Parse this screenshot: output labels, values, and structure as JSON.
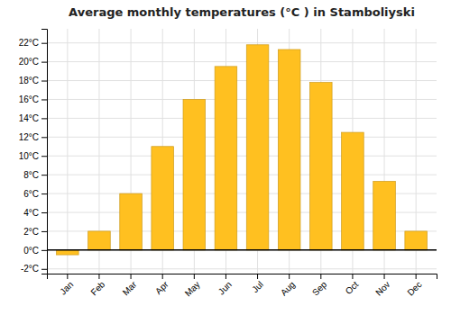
{
  "chart_data": {
    "type": "bar",
    "title": "Average monthly temperatures (°C ) in Stamboliyski",
    "categories": [
      "Jan",
      "Feb",
      "Mar",
      "Apr",
      "May",
      "Jun",
      "Jul",
      "Aug",
      "Sep",
      "Oct",
      "Nov",
      "Dec"
    ],
    "values": [
      -0.5,
      2.0,
      6.0,
      11.0,
      16.0,
      19.5,
      21.8,
      21.3,
      17.8,
      12.5,
      7.3,
      2.0
    ],
    "color": "#FFC020",
    "ylim": [
      -2.5,
      23.5
    ],
    "yticks": [
      {
        "value": -2,
        "label": "-2°C"
      },
      {
        "value": 0,
        "label": "0°C"
      },
      {
        "value": 2,
        "label": "2°C"
      },
      {
        "value": 4,
        "label": "4°C"
      },
      {
        "value": 6,
        "label": "6°C"
      },
      {
        "value": 8,
        "label": "8°C"
      },
      {
        "value": 10,
        "label": "10°C"
      },
      {
        "value": 12,
        "label": "12°C"
      },
      {
        "value": 14,
        "label": "14°C"
      },
      {
        "value": 16,
        "label": "16°C"
      },
      {
        "value": 18,
        "label": "18°C"
      },
      {
        "value": 20,
        "label": "20°C"
      },
      {
        "value": 22,
        "label": "22°C"
      }
    ],
    "grid": true
  }
}
